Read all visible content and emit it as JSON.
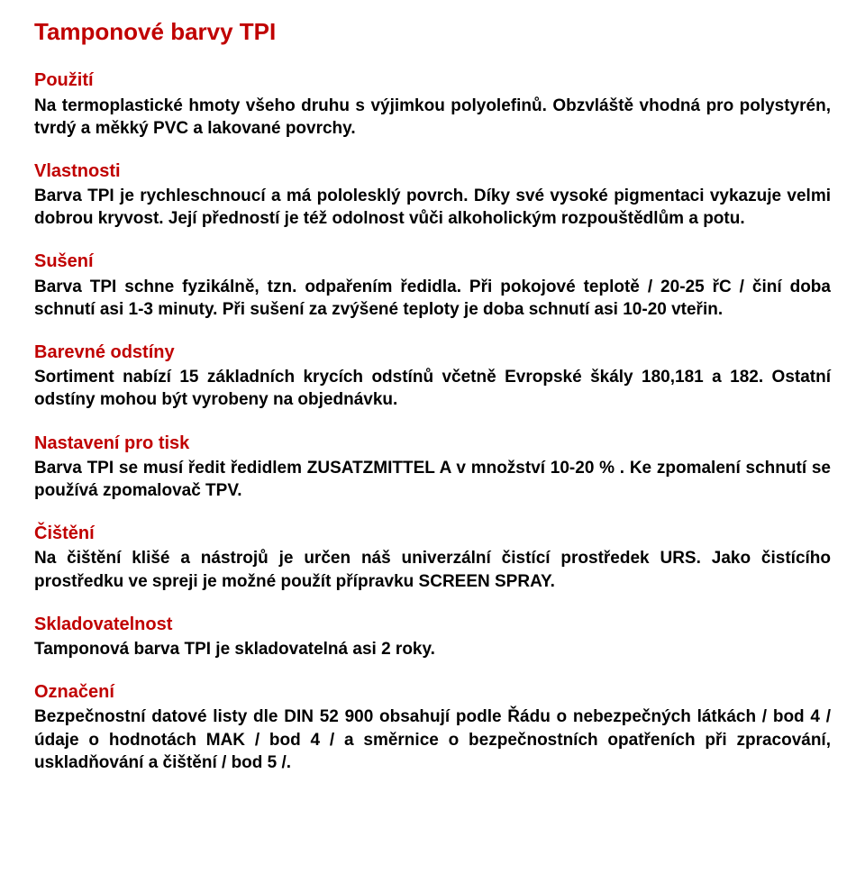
{
  "title": "Tamponové barvy TPI",
  "sections": [
    {
      "heading": "Použití",
      "body": "Na termoplastické  hmoty všeho druhu  s výjimkou polyolefinů. Obzvláště vhodná pro  polystyrén, tvrdý  a  měkký  PVC a lakované povrchy."
    },
    {
      "heading": "Vlastnosti",
      "body": "Barva TPI je rychleschnoucí a  má pololesklý povrch. Díky své vysoké pigmentaci  vykazuje velmi  dobrou  kryvost.  Její předností  je též odolnost vůči alkoholickým rozpouštědlům a potu."
    },
    {
      "heading": "Sušení",
      "body": "Barva  TPI schne  fyzikálně,  tzn.  odpařením ředidla.  Při pokojové teplotě / 20-25 řC / činí doba schnutí asi 1-3 minuty. Při sušení za zvýšené teploty je doba schnutí asi 10-20 vteřin."
    },
    {
      "heading": "Barevné odstíny",
      "body": "Sortiment nabízí 15 základních krycích odstínů včetně Evropské škály 180,181 a 182. Ostatní odstíny  mohou být vyrobeny na objednávku."
    },
    {
      "heading": "Nastavení pro tisk",
      "body": "Barva TPI se  musí ředit ředidlem ZUSATZMITTEL A  v množství 10-20 % . Ke zpomalení schnutí se používá zpomalovač TPV."
    },
    {
      "heading": "Čištění",
      "body": "Na  čištění  klišé  a  nástrojů  je  určen  náš  univerzální čistící prostředek URS. Jako čistícího prostředku  ve spreji je možné použít přípravku  SCREEN SPRAY."
    },
    {
      "heading": "Skladovatelnost",
      "body": "Tamponová barva TPI je skladovatelná asi 2 roky."
    },
    {
      "heading": "Označení",
      "body": "Bezpečnostní  datové listy  dle DIN   52 900   obsahují podle  Řádu o nebezpečných látkách / bod  4  / údaje o hodnotách MAK / bod 4 /   a směrnice o bezpečnostních opatřeních  při zpracování, uskladňování a čištění / bod 5 /."
    }
  ]
}
